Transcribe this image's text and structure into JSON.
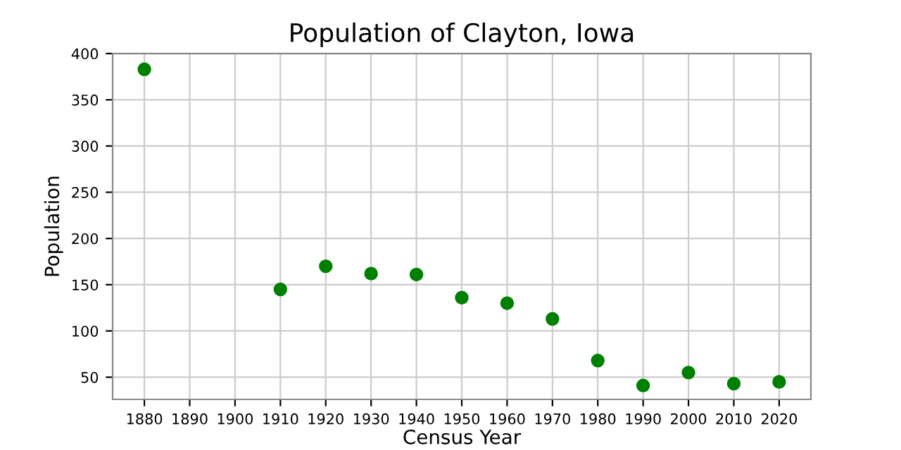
{
  "chart_data": {
    "type": "scatter",
    "title": "Population of Clayton, Iowa",
    "xlabel": "Census Year",
    "ylabel": "Population",
    "x": [
      1880,
      1910,
      1920,
      1930,
      1940,
      1950,
      1960,
      1970,
      1980,
      1990,
      2000,
      2010,
      2020
    ],
    "series": [
      {
        "color": "#008000",
        "values": [
          383,
          145,
          170,
          162,
          161,
          136,
          130,
          113,
          68,
          41,
          55,
          43,
          45
        ]
      }
    ],
    "xlim": [
      1873,
      2027
    ],
    "ylim": [
      26,
      400
    ],
    "xticks": [
      1880,
      1890,
      1900,
      1910,
      1920,
      1930,
      1940,
      1950,
      1960,
      1970,
      1980,
      1990,
      2000,
      2010,
      2020
    ],
    "yticks": [
      50,
      100,
      150,
      200,
      250,
      300,
      350,
      400
    ],
    "grid": true,
    "marker": "circle"
  }
}
